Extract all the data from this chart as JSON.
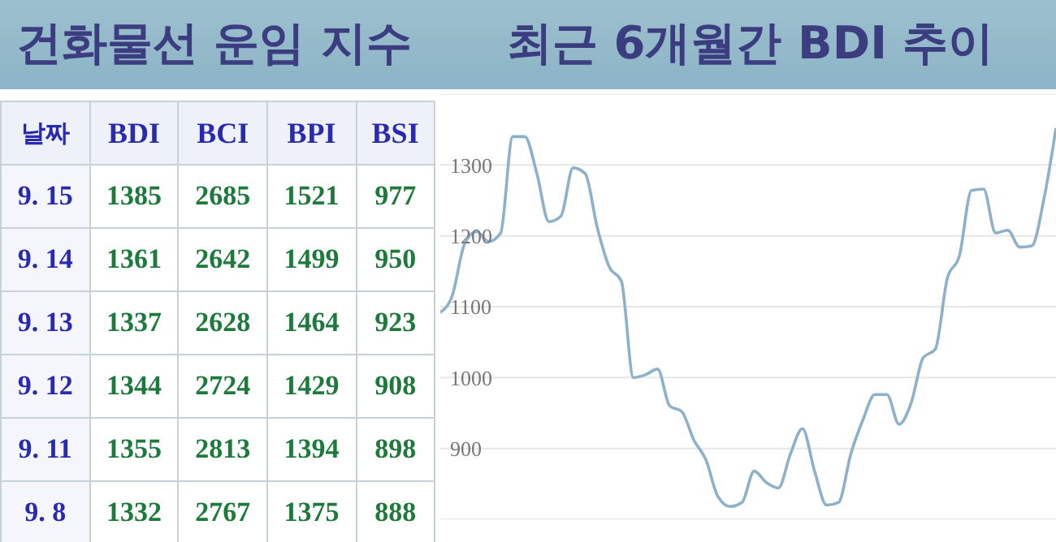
{
  "chart_data": [
    {
      "type": "other",
      "title": "건화물선 운임 지수",
      "xlabel": "날짜",
      "categories": [
        "9. 15",
        "9. 14",
        "9. 13",
        "9. 12",
        "9. 11",
        "9. 8"
      ],
      "data_labels": true,
      "series": [
        {
          "name": "BDI",
          "values": [
            1385,
            1361,
            1337,
            1344,
            1355,
            1332
          ]
        },
        {
          "name": "BCI",
          "values": [
            2685,
            2642,
            2628,
            2724,
            2813,
            2767
          ]
        },
        {
          "name": "BPI",
          "values": [
            1521,
            1499,
            1464,
            1429,
            1394,
            1375
          ]
        },
        {
          "name": "BSI",
          "values": [
            977,
            950,
            923,
            908,
            898,
            888
          ]
        }
      ]
    },
    {
      "type": "line",
      "title": "최근 6개월간 BDI 추이",
      "categories": [
        null,
        null,
        null,
        null,
        null,
        null,
        null,
        null,
        null,
        null,
        null,
        null,
        null,
        null,
        null,
        null,
        null,
        null,
        null,
        null,
        null,
        null,
        null,
        null,
        null,
        null,
        null,
        null,
        null,
        null,
        null,
        null,
        null,
        null,
        null,
        null,
        null,
        null,
        null,
        null,
        null,
        null,
        null,
        null,
        null,
        null,
        null,
        null,
        null,
        null,
        null,
        null
      ],
      "series": [
        {
          "color": "#8db1c9",
          "values": [
            1092,
            1116,
            1188,
            1206,
            1192,
            1204,
            1340,
            1340,
            1288,
            1220,
            1228,
            1296,
            1288,
            1212,
            1156,
            1136,
            1000,
            1004,
            1012,
            960,
            952,
            912,
            884,
            832,
            818,
            824,
            868,
            852,
            844,
            892,
            928,
            868,
            820,
            824,
            892,
            940,
            976,
            976,
            934,
            964,
            1028,
            1040,
            1140,
            1172,
            1264,
            1266,
            1204,
            1208,
            1184,
            1186,
            1252,
            1352
          ]
        }
      ],
      "ylim": [
        800,
        1400
      ],
      "yticks": [
        900,
        1000,
        1100,
        1200,
        1300
      ],
      "grid": "y",
      "marker": "none",
      "line_style": "solid",
      "tick_labels": "y"
    }
  ]
}
